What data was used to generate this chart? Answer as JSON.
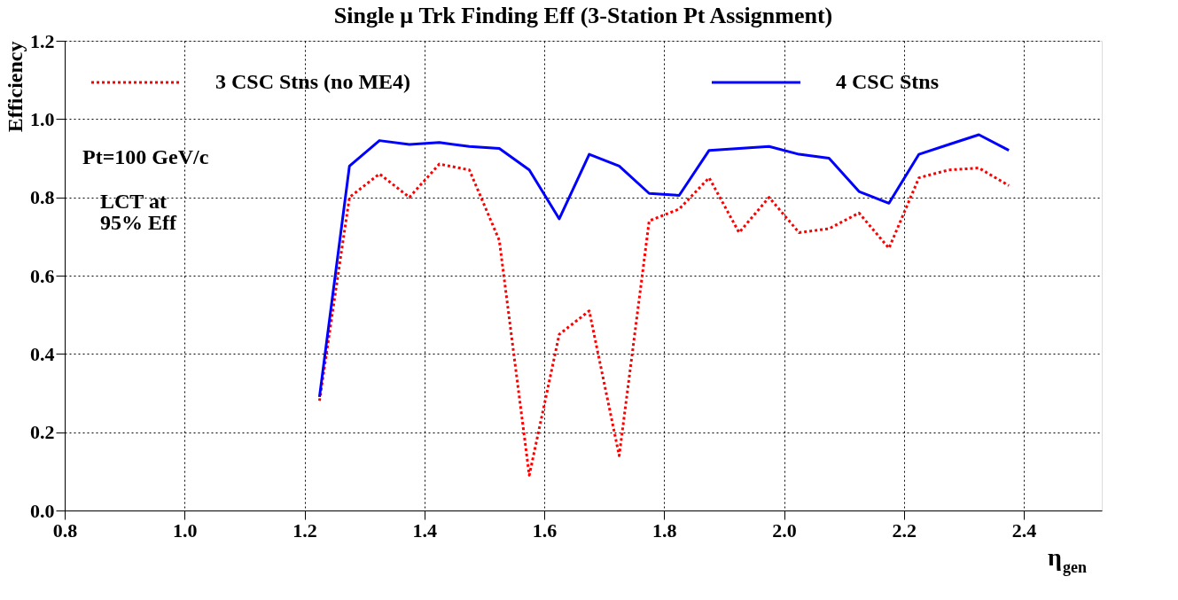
{
  "chart_data": {
    "type": "line",
    "title": "Single μ Trk Finding Eff (3-Station Pt Assignment)",
    "xlabel": "η$_{gen}$",
    "ylabel": "Efficiency",
    "x": [
      1.225,
      1.275,
      1.325,
      1.375,
      1.425,
      1.475,
      1.525,
      1.575,
      1.625,
      1.675,
      1.725,
      1.775,
      1.825,
      1.875,
      1.925,
      1.975,
      2.025,
      2.075,
      2.125,
      2.175,
      2.225,
      2.275,
      2.325,
      2.375
    ],
    "series": [
      {
        "name": "3 CSC Stns (no ME4)",
        "color": "#ff0000",
        "line_style": "dotted",
        "values": [
          0.28,
          0.8,
          0.86,
          0.8,
          0.885,
          0.87,
          0.69,
          0.09,
          0.45,
          0.51,
          0.14,
          0.74,
          0.77,
          0.85,
          0.71,
          0.8,
          0.71,
          0.72,
          0.76,
          0.67,
          0.85,
          0.87,
          0.875,
          0.83
        ]
      },
      {
        "name": "4 CSC Stns",
        "color": "#0000ff",
        "line_style": "solid",
        "values": [
          0.29,
          0.88,
          0.945,
          0.935,
          0.94,
          0.93,
          0.925,
          0.87,
          0.745,
          0.91,
          0.88,
          0.81,
          0.805,
          0.92,
          0.925,
          0.93,
          0.91,
          0.9,
          0.815,
          0.785,
          0.91,
          0.935,
          0.96,
          0.92
        ]
      }
    ],
    "xlim": [
      0.8,
      2.53
    ],
    "ylim": [
      0,
      1.2
    ],
    "xticks": [
      0.8,
      {
        "value": 1,
        "label": "1.0"
      },
      1.2,
      1.4,
      1.6,
      1.8,
      {
        "value": 2,
        "label": "2.0"
      },
      2.2,
      2.4
    ],
    "yticks": [
      {
        "value": 0,
        "label": "0.0"
      },
      0.2,
      0.4,
      0.6,
      0.8,
      {
        "value": 1,
        "label": "1.0"
      },
      1.2
    ],
    "grid": true,
    "legend": "top",
    "marker": "none",
    "annotations": [
      "Pt=100 GeV/c",
      "LCT at\n95% Eff"
    ]
  }
}
